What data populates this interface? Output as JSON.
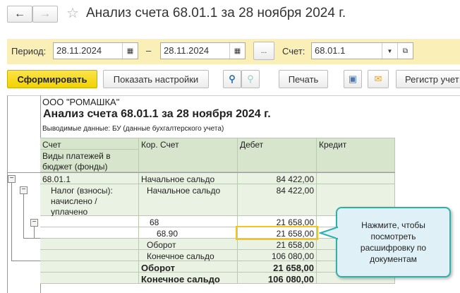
{
  "window": {
    "title": "Анализ счета 68.01.1 за 28 ноября 2024 г."
  },
  "filters": {
    "period_label": "Период:",
    "date_from": "28.11.2024",
    "dash": "–",
    "date_to": "28.11.2024",
    "more": "...",
    "account_label": "Счет:",
    "account": "68.01.1"
  },
  "toolbar": {
    "generate": "Сформировать",
    "settings": "Показать настройки",
    "print": "Печать",
    "register": "Регистр учет"
  },
  "report": {
    "org": "ООО \"РОМАШКА\"",
    "title": "Анализ счета 68.01.1 за 28 ноября 2024 г.",
    "subtitle": "Выводимые данные: БУ (данные бухгалтерского учета)",
    "headers": {
      "account": "Счет",
      "payment_types": "Виды платежей в бюджет (фонды)",
      "corr": "Кор. Счет",
      "debit": "Дебет",
      "credit": "Кредит"
    },
    "rows": [
      {
        "account": "68.01.1",
        "corr": "Начальное сальдо",
        "debit": "84 422,00"
      },
      {
        "account": "Налог (взносы): начислено / уплачено",
        "corr": "Начальное сальдо",
        "debit": "84 422,00"
      },
      {
        "account": "",
        "corr": "68",
        "debit": "21 658,00"
      },
      {
        "account": "",
        "corr": "68.90",
        "debit": "21 658,00"
      },
      {
        "account": "",
        "corr": "Оборот",
        "debit": "21 658,00"
      },
      {
        "account": "",
        "corr": "Конечное сальдо",
        "debit": "106 080,00"
      },
      {
        "account": "",
        "corr": "Оборот",
        "debit": "21 658,00"
      },
      {
        "account": "",
        "corr": "Конечное сальдо",
        "debit": "106 080,00"
      }
    ]
  },
  "tooltip": {
    "text": "Нажмите, чтобы посмотреть расшифровку по документам"
  },
  "colors": {
    "accent_yellow": "#f5d90a",
    "filter_band": "#fbefb8",
    "header_green": "#d8e5cd",
    "row_green": "#eaf2e3",
    "callout": "#2fb0a8"
  }
}
